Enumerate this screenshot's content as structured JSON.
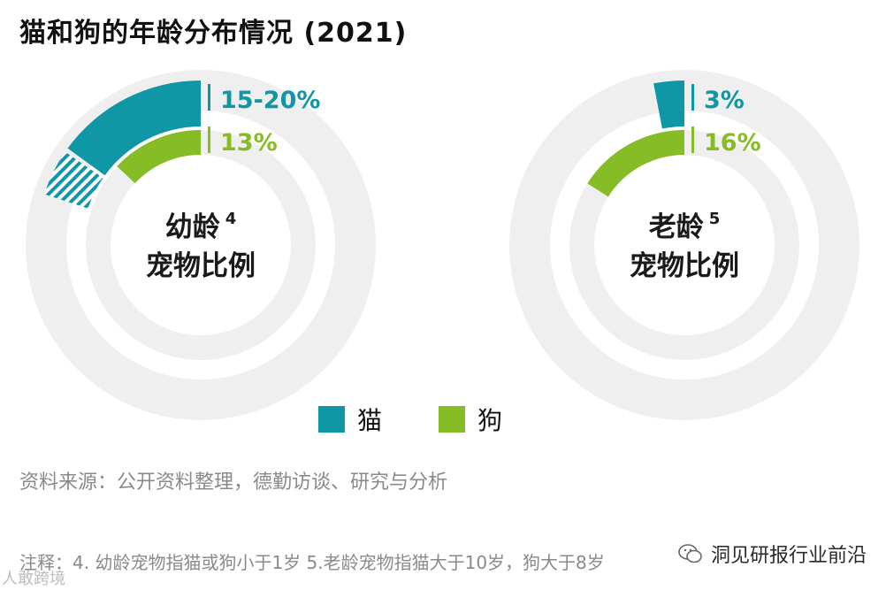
{
  "title": "猫和狗的年龄分布情况 (2021)",
  "colors": {
    "cat": "#0f97a6",
    "dog": "#86bc25",
    "track": "#efefef",
    "hatch": "#0f97a6"
  },
  "chart_data": [
    {
      "type": "donut",
      "center_label_line1": "幼龄",
      "center_label_sup": "4",
      "center_label_line2": "宠物比例",
      "series": [
        {
          "name": "猫",
          "label": "15-20%",
          "value_low": 15,
          "value_high": 20
        },
        {
          "name": "狗",
          "label": "13%",
          "value": 13
        }
      ]
    },
    {
      "type": "donut",
      "center_label_line1": "老龄",
      "center_label_sup": "5",
      "center_label_line2": "宠物比例",
      "series": [
        {
          "name": "猫",
          "label": "3%",
          "value": 3
        },
        {
          "name": "狗",
          "label": "16%",
          "value": 16
        }
      ]
    }
  ],
  "legend": [
    {
      "name": "猫",
      "color": "#0f97a6"
    },
    {
      "name": "狗",
      "color": "#86bc25"
    }
  ],
  "source": "资料来源：公开资料整理，德勤访谈、研究与分析",
  "notes": "注释：4. 幼龄宠物指猫或狗小于1岁  5.老龄宠物指猫大于10岁，狗大于8岁",
  "watermark": "洞见研报行业前沿",
  "watermark_bottom": "人敢跨境"
}
